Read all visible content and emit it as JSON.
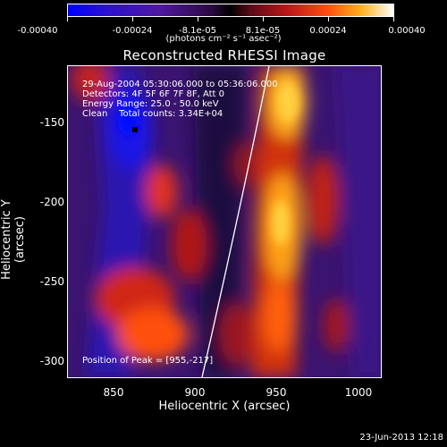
{
  "colorbar": {
    "ticks": [
      "-0.00040",
      "-0.00024",
      "-8.1e-05",
      "8.1e-05",
      "0.00024",
      "0.00040"
    ],
    "units": "(photons cm⁻² s⁻¹ asec⁻²)",
    "colors": [
      "#0000ff",
      "#5018a0",
      "#000000",
      "#c01818",
      "#ffb020",
      "#ffffff"
    ]
  },
  "title": "Reconstructed RHESSI Image",
  "info": {
    "time": "29-Aug-2004 05:30:06.000 to 05:36:06.000",
    "detectors": "Detectors: 4F 5F 6F 7F 8F, Att 0",
    "energy": "Energy Range: 25.0 - 50.0 keV",
    "clean": "Clean    Total counts: 3.34E+04",
    "peak": "Position of Peak = [955,-217]"
  },
  "axes": {
    "xlabel": "Heliocentric X (arcsec)",
    "ylabel": "Heliocentric Y (arcsec)",
    "xticks": [
      "850",
      "900",
      "950",
      "1000"
    ],
    "yticks": [
      "-150",
      "-200",
      "-250",
      "-300"
    ]
  },
  "timestamp": "23-Jun-2013 12:18"
}
